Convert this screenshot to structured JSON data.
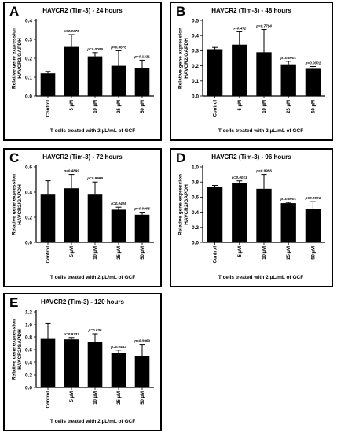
{
  "chart_data": [
    {
      "type": "bar",
      "panel_letter": "A",
      "title": "HAVCR2 (Tim-3) - 24 hours",
      "ylabel": "Relative gene expression\nHAVCR2/GAPDH",
      "xlabel": "T cells treated with 2 µL/mL of GCF",
      "categories": [
        "Control",
        "5 µM",
        "10 µM",
        "25 µM",
        "50 µM"
      ],
      "values": [
        0.12,
        0.26,
        0.21,
        0.16,
        0.15
      ],
      "errors": [
        0.01,
        0.065,
        0.02,
        0.08,
        0.04
      ],
      "pvalues": [
        "",
        "p=0.0078",
        "p=0.0009",
        "p=0.3676",
        "p=0.1321"
      ],
      "ylim": [
        0,
        0.4
      ],
      "yticks": [
        "0.0",
        "0.1",
        "0.2",
        "0.3",
        "0.4"
      ]
    },
    {
      "type": "bar",
      "panel_letter": "B",
      "title": "HAVCR2 (Tim-3) - 48 hours",
      "ylabel": "Relative gene expression\nHAVCR2/GAPDH",
      "xlabel": "T cells treated with 2 µL/mL of GCF",
      "categories": [
        "Control",
        "5 µM",
        "10 µM",
        "25 µM",
        "50 µM"
      ],
      "values": [
        0.31,
        0.34,
        0.29,
        0.21,
        0.18
      ],
      "errors": [
        0.012,
        0.085,
        0.15,
        0.02,
        0.015
      ],
      "pvalues": [
        "",
        "p=0.472",
        "p=0.7794",
        "p=0.0001",
        "p=0.0001"
      ],
      "ylim": [
        0,
        0.5
      ],
      "yticks": [
        "0.0",
        "0.1",
        "0.2",
        "0.3",
        "0.4",
        "0.5"
      ]
    },
    {
      "type": "bar",
      "panel_letter": "C",
      "title": "HAVCR2 (Tim-3) - 72 hours",
      "ylabel": "Relative gene expression\nHAVCR2/GAPDH",
      "xlabel": "T cells treated with 2 µL/mL of GCF",
      "categories": [
        "Control",
        "5 µM",
        "10 µM",
        "25 µM",
        "50 µM"
      ],
      "values": [
        0.38,
        0.43,
        0.38,
        0.26,
        0.22
      ],
      "errors": [
        0.11,
        0.11,
        0.1,
        0.02,
        0.02
      ],
      "pvalues": [
        "",
        "p=0.4899",
        "p=0.9999",
        "p=0.0408",
        "p=0.0006"
      ],
      "ylim": [
        0,
        0.6
      ],
      "yticks": [
        "0.0",
        "0.2",
        "0.4",
        "0.6"
      ]
    },
    {
      "type": "bar",
      "panel_letter": "D",
      "title": "HAVCR2 (Tim-3) - 96 hours",
      "ylabel": "Relative gene expression\nHAVCR2/GAPDH",
      "xlabel": "T cells treated with 2 µL/mL of GCF",
      "categories": [
        "Control",
        "5 µM",
        "10 µM",
        "25 µM",
        "50 µM"
      ],
      "values": [
        0.73,
        0.79,
        0.71,
        0.52,
        0.44
      ],
      "errors": [
        0.025,
        0.025,
        0.19,
        0.01,
        0.1
      ],
      "pvalues": [
        "",
        "p=0.0013",
        "p=0.9956",
        "p=0.0001",
        "p=0.0001"
      ],
      "ylim": [
        0,
        1.0
      ],
      "yticks": [
        "0.0",
        "0.2",
        "0.4",
        "0.6",
        "0.8",
        "1.0"
      ]
    },
    {
      "type": "bar",
      "panel_letter": "E",
      "title": "HAVCR2 (Tim-3) - 120 hours",
      "ylabel": "Relative gene expression\nHAVCR2/GAPDH",
      "xlabel": "T cells treated with 2 µL/mL of GCF",
      "categories": [
        "Control",
        "5 µM",
        "10 µM",
        "25 µM",
        "50 µM"
      ],
      "values": [
        0.78,
        0.76,
        0.72,
        0.55,
        0.5
      ],
      "errors": [
        0.24,
        0.03,
        0.13,
        0.04,
        0.18
      ],
      "pvalues": [
        "",
        "p=0.9233",
        "p=0.636",
        "p=0.0443",
        "p=0.0969"
      ],
      "ylim": [
        0,
        1.2
      ],
      "yticks": [
        "0.0",
        "0.2",
        "0.4",
        "0.6",
        "0.8",
        "1.0",
        "1.2"
      ]
    }
  ]
}
